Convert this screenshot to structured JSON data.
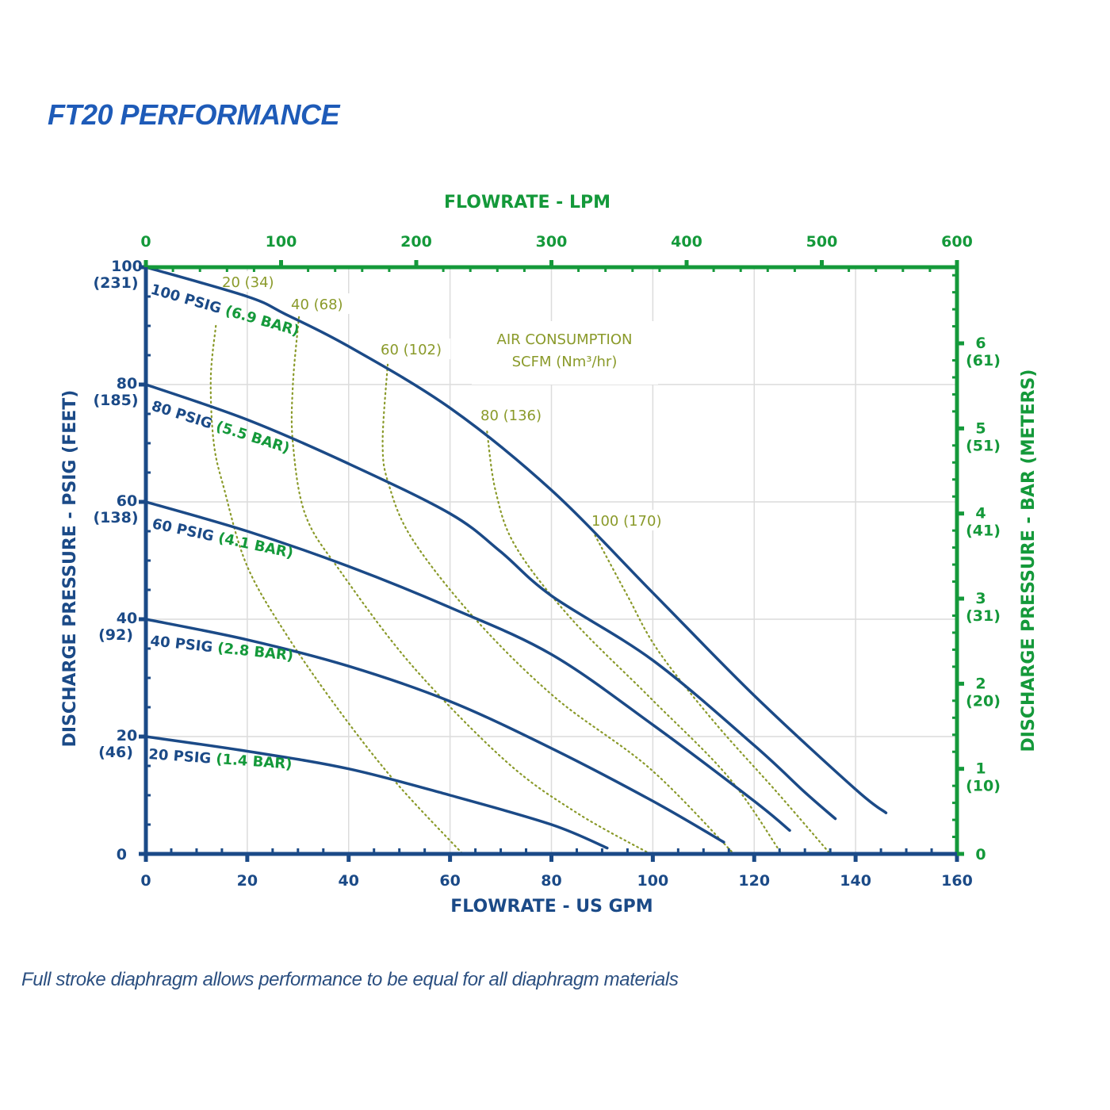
{
  "title": "FT20 PERFORMANCE",
  "footnote": "Full stroke diaphragm allows performance to be equal for all diaphragm materials",
  "colors": {
    "navy": "#1b4a87",
    "green": "#14993a",
    "olive": "#8a9a2a",
    "grid": "#dcdcdc",
    "title": "#1e5bb8"
  },
  "chart_data": {
    "type": "line",
    "xlabel": "FLOWRATE - US GPM",
    "x2label": "FLOWRATE - LPM",
    "ylabel": "DISCHARGE PRESSURE - PSIG (FEET)",
    "y2label": "DISCHARGE PRESSURE - BAR (METERS)",
    "xlim": [
      0,
      160
    ],
    "ylim": [
      0,
      100
    ],
    "x2lim": [
      0,
      600
    ],
    "y2lim_bar": [
      0,
      6.9
    ],
    "grid": true,
    "x_ticks": [
      "0",
      "20",
      "40",
      "60",
      "80",
      "100",
      "120",
      "140",
      "160"
    ],
    "x2_ticks": [
      "0",
      "100",
      "200",
      "300",
      "400",
      "500",
      "600"
    ],
    "y_ticks": [
      {
        "value": 0,
        "label": "0",
        "sub": ""
      },
      {
        "value": 20,
        "label": "20",
        "sub": "(46)"
      },
      {
        "value": 40,
        "label": "40",
        "sub": "(92)"
      },
      {
        "value": 60,
        "label": "60",
        "sub": "(138)"
      },
      {
        "value": 80,
        "label": "80",
        "sub": "(185)"
      },
      {
        "value": 100,
        "label": "100",
        "sub": "(231)"
      }
    ],
    "y2_ticks": [
      {
        "value": 0,
        "label": "0",
        "sub": ""
      },
      {
        "value": 1,
        "label": "1",
        "sub": "(10)"
      },
      {
        "value": 2,
        "label": "2",
        "sub": "(20)"
      },
      {
        "value": 3,
        "label": "3",
        "sub": "(31)"
      },
      {
        "value": 4,
        "label": "4",
        "sub": "(41)"
      },
      {
        "value": 5,
        "label": "5",
        "sub": "(51)"
      },
      {
        "value": 6,
        "label": "6",
        "sub": "(61)"
      }
    ],
    "series": [
      {
        "name": "100 PSIG",
        "bar": "(6.9 BAR)",
        "points": [
          [
            0,
            100
          ],
          [
            20,
            95
          ],
          [
            27.5,
            92
          ],
          [
            40,
            86.5
          ],
          [
            60,
            76
          ],
          [
            80,
            62
          ],
          [
            100,
            44.5
          ],
          [
            120,
            27
          ],
          [
            140,
            11
          ],
          [
            146,
            7
          ]
        ]
      },
      {
        "name": "80 PSIG",
        "bar": "(5.5 BAR)",
        "points": [
          [
            0,
            80
          ],
          [
            20,
            74
          ],
          [
            40,
            66.5
          ],
          [
            60,
            58
          ],
          [
            70,
            51.5
          ],
          [
            80,
            44
          ],
          [
            100,
            33
          ],
          [
            120,
            18.5
          ],
          [
            130,
            10.5
          ],
          [
            136,
            6
          ]
        ]
      },
      {
        "name": "60 PSIG",
        "bar": "(4.1 BAR)",
        "points": [
          [
            0,
            60
          ],
          [
            20,
            55
          ],
          [
            40,
            49
          ],
          [
            60,
            42
          ],
          [
            80,
            34
          ],
          [
            100,
            22
          ],
          [
            120,
            9
          ],
          [
            127,
            4
          ]
        ]
      },
      {
        "name": "40 PSIG",
        "bar": "(2.8 BAR)",
        "points": [
          [
            0,
            40
          ],
          [
            20,
            36.5
          ],
          [
            40,
            32
          ],
          [
            60,
            26
          ],
          [
            80,
            18
          ],
          [
            100,
            9
          ],
          [
            114,
            2
          ]
        ]
      },
      {
        "name": "20 PSIG",
        "bar": "(1.4 BAR)",
        "points": [
          [
            0,
            20
          ],
          [
            20,
            17.5
          ],
          [
            40,
            14.5
          ],
          [
            60,
            10
          ],
          [
            80,
            5
          ],
          [
            91,
            1
          ]
        ]
      }
    ],
    "air_consumption": {
      "title": "AIR CONSUMPTION",
      "unit": "SCFM (Nm³/hr)",
      "lines": [
        {
          "label": "20 (34)",
          "points": [
            [
              13.8,
              90
            ],
            [
              12.8,
              81
            ],
            [
              13.4,
              70
            ],
            [
              15.5,
              62
            ],
            [
              20,
              49
            ],
            [
              28,
              37
            ],
            [
              38.5,
              24
            ],
            [
              49.5,
              12
            ],
            [
              62.5,
              0
            ]
          ]
        },
        {
          "label": "40 (68)",
          "points": [
            [
              30.2,
              91.5
            ],
            [
              29,
              80
            ],
            [
              29,
              70
            ],
            [
              31.5,
              57.7
            ],
            [
              38.5,
              48
            ],
            [
              52.6,
              32
            ],
            [
              71,
              15.8
            ],
            [
              85,
              7
            ],
            [
              99.5,
              0
            ]
          ]
        },
        {
          "label": "60 (102)",
          "points": [
            [
              47.7,
              83.4
            ],
            [
              46.7,
              70
            ],
            [
              47.9,
              63
            ],
            [
              52.6,
              53.6
            ],
            [
              65,
              40
            ],
            [
              80.8,
              26.6
            ],
            [
              99.5,
              14.5
            ],
            [
              116,
              0
            ]
          ]
        },
        {
          "label": "80 (136)",
          "points": [
            [
              67.3,
              72
            ],
            [
              69,
              61.8
            ],
            [
              73,
              52.3
            ],
            [
              84,
              40
            ],
            [
              99.5,
              26.6
            ],
            [
              115,
              13
            ],
            [
              125.4,
              0
            ]
          ]
        },
        {
          "label": "100 (170)",
          "points": [
            [
              88.6,
              54.3
            ],
            [
              95,
              44
            ],
            [
              101,
              34.7
            ],
            [
              112,
              22.6
            ],
            [
              124.6,
              10.4
            ],
            [
              135,
              0
            ]
          ]
        }
      ]
    }
  }
}
